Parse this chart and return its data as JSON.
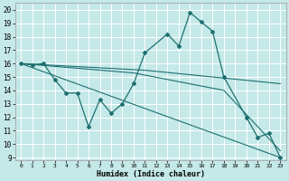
{
  "xlabel": "Humidex (Indice chaleur)",
  "bg_color": "#c5e8e8",
  "grid_color": "#ffffff",
  "line_color": "#1e7070",
  "xlim": [
    -0.5,
    23.5
  ],
  "ylim": [
    8.8,
    20.5
  ],
  "xticks": [
    0,
    1,
    2,
    3,
    4,
    5,
    6,
    7,
    8,
    9,
    10,
    11,
    12,
    13,
    14,
    15,
    16,
    17,
    18,
    19,
    20,
    21,
    22,
    23
  ],
  "yticks": [
    9,
    10,
    11,
    12,
    13,
    14,
    15,
    16,
    17,
    18,
    19,
    20
  ],
  "series": [
    {
      "x": [
        0,
        1,
        2,
        3,
        4,
        5,
        6,
        7,
        8,
        9,
        10,
        11,
        13,
        14,
        15,
        16,
        17,
        18,
        20,
        21,
        22,
        23
      ],
      "y": [
        16,
        15.9,
        16,
        14.8,
        13.8,
        13.8,
        11.3,
        13.3,
        12.3,
        13.0,
        14.5,
        16.8,
        18.2,
        17.3,
        19.8,
        19.1,
        18.4,
        15.0,
        12.0,
        10.5,
        10.8,
        9.0
      ],
      "marker": true
    },
    {
      "x": [
        0,
        23
      ],
      "y": [
        16,
        9.0
      ],
      "marker": false
    },
    {
      "x": [
        0,
        11,
        17,
        23
      ],
      "y": [
        16,
        15.5,
        15.0,
        14.5
      ],
      "marker": false
    },
    {
      "x": [
        0,
        10,
        18,
        23
      ],
      "y": [
        16.0,
        15.3,
        14.0,
        9.5
      ],
      "marker": false
    }
  ]
}
